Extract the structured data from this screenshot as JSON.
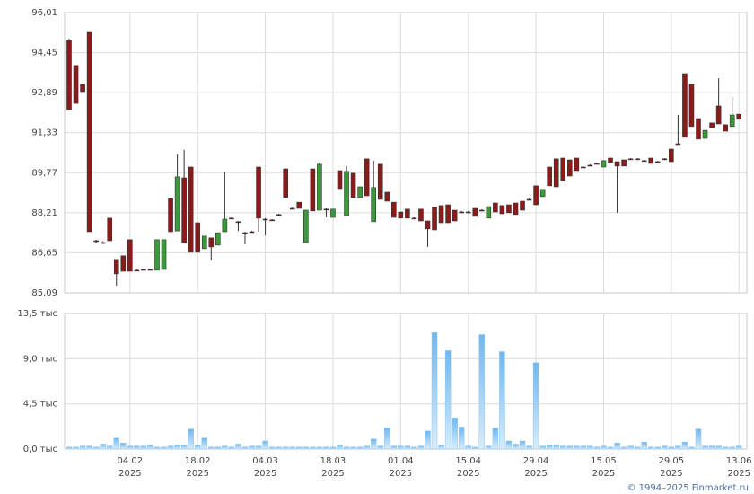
{
  "chart_data": {
    "type": "candlestick",
    "categories": [
      null,
      null,
      null,
      null,
      null,
      null,
      null,
      null,
      null,
      "04.02",
      null,
      null,
      null,
      null,
      null,
      null,
      null,
      null,
      null,
      "18.02",
      null,
      null,
      null,
      null,
      null,
      null,
      null,
      null,
      null,
      "04.03",
      null,
      null,
      null,
      null,
      null,
      null,
      null,
      null,
      null,
      "18.03",
      null,
      null,
      null,
      null,
      null,
      null,
      null,
      null,
      null,
      "01.04",
      null,
      null,
      null,
      null,
      null,
      null,
      null,
      null,
      null,
      "15.04",
      null,
      null,
      null,
      null,
      null,
      null,
      null,
      null,
      null,
      "29.04",
      null,
      null,
      null,
      null,
      null,
      null,
      null,
      null,
      null,
      "15.05",
      null,
      null,
      null,
      null,
      null,
      null,
      null,
      null,
      null,
      "29.05",
      null,
      null,
      null,
      null,
      null,
      null,
      null,
      null,
      null,
      "13.06"
    ],
    "year": "2025",
    "open": [
      94.93,
      93.95,
      93.21,
      95.24,
      87.12,
      87.05,
      88.0,
      86.39,
      86.53,
      87.16,
      85.97,
      86.0,
      86.0,
      85.97,
      86.0,
      88.77,
      87.5,
      89.57,
      89.99,
      87.82,
      86.81,
      87.23,
      86.95,
      87.47,
      88.0,
      87.86,
      87.43,
      87.47,
      89.99,
      87.96,
      87.93,
      88.14,
      89.92,
      88.38,
      88.62,
      87.05,
      89.92,
      88.31,
      88.35,
      88.03,
      89.85,
      88.1,
      89.75,
      88.8,
      90.31,
      87.86,
      90.1,
      89.01,
      88.62,
      88.24,
      88.35,
      88.0,
      88.35,
      87.89,
      88.42,
      88.49,
      88.52,
      88.31,
      88.24,
      88.24,
      88.38,
      88.31,
      88.0,
      88.59,
      88.49,
      88.52,
      88.59,
      88.66,
      88.73,
      89.26,
      88.84,
      89.99,
      90.31,
      90.34,
      90.27,
      90.34,
      89.99,
      90.06,
      90.13,
      89.99,
      90.34,
      90.2,
      90.27,
      90.31,
      90.31,
      90.24,
      90.34,
      90.2,
      90.31,
      90.69,
      90.9,
      93.63,
      93.21,
      91.88,
      91.11,
      91.71,
      92.37,
      91.64,
      91.57,
      92.05
    ],
    "high": [
      95.0,
      93.95,
      93.21,
      95.24,
      87.16,
      87.1,
      88.0,
      86.39,
      86.53,
      87.16,
      86.0,
      86.03,
      86.03,
      87.16,
      87.16,
      88.77,
      90.48,
      90.66,
      89.99,
      87.82,
      87.3,
      87.23,
      87.43,
      89.78,
      88.03,
      87.89,
      87.47,
      87.5,
      89.99,
      88.0,
      87.96,
      88.17,
      89.92,
      88.42,
      88.62,
      88.31,
      89.92,
      90.17,
      88.38,
      88.35,
      89.85,
      90.03,
      89.75,
      89.22,
      90.31,
      90.24,
      90.1,
      89.01,
      88.62,
      88.24,
      88.35,
      88.03,
      88.35,
      87.89,
      88.42,
      88.49,
      88.52,
      88.31,
      88.28,
      88.28,
      88.38,
      88.35,
      88.45,
      88.59,
      88.49,
      88.52,
      88.59,
      88.66,
      88.77,
      89.26,
      89.12,
      89.99,
      90.31,
      90.34,
      90.27,
      90.34,
      90.03,
      90.1,
      90.17,
      90.24,
      90.34,
      90.2,
      90.27,
      90.34,
      90.34,
      90.27,
      90.34,
      90.24,
      90.34,
      90.69,
      92.02,
      93.63,
      93.21,
      91.88,
      91.42,
      91.71,
      93.45,
      91.64,
      92.72,
      92.05
    ],
    "low": [
      92.23,
      92.47,
      92.93,
      87.47,
      87.05,
      87.0,
      87.12,
      85.37,
      85.93,
      85.93,
      85.93,
      85.97,
      85.97,
      85.97,
      86.0,
      87.47,
      87.5,
      87.05,
      86.67,
      86.67,
      86.81,
      86.35,
      86.95,
      87.47,
      87.96,
      87.5,
      86.98,
      87.43,
      87.47,
      87.33,
      87.89,
      88.1,
      88.8,
      88.35,
      88.38,
      87.05,
      88.28,
      88.31,
      88.03,
      88.03,
      89.15,
      88.1,
      88.8,
      88.8,
      88.87,
      87.86,
      88.73,
      88.66,
      88.03,
      88.0,
      88.0,
      87.96,
      87.89,
      86.88,
      87.54,
      87.82,
      87.82,
      87.89,
      88.21,
      88.21,
      88.07,
      88.28,
      88.0,
      88.24,
      88.17,
      88.21,
      88.14,
      88.31,
      88.7,
      88.52,
      88.84,
      89.26,
      89.22,
      89.47,
      89.64,
      89.85,
      89.96,
      90.03,
      90.1,
      89.99,
      90.17,
      88.21,
      90.03,
      90.27,
      90.27,
      90.2,
      90.13,
      90.17,
      90.27,
      90.2,
      90.87,
      91.15,
      91.57,
      91.08,
      91.11,
      91.53,
      91.67,
      91.39,
      91.57,
      91.85
    ],
    "close": [
      92.23,
      92.47,
      92.93,
      87.47,
      87.12,
      87.05,
      87.12,
      85.83,
      85.93,
      85.93,
      85.97,
      86.0,
      86.0,
      87.16,
      87.16,
      87.47,
      89.61,
      87.05,
      86.67,
      86.67,
      87.3,
      86.88,
      87.43,
      87.96,
      88.0,
      87.86,
      87.43,
      87.47,
      88.0,
      87.96,
      87.93,
      88.14,
      88.8,
      88.38,
      88.38,
      88.31,
      88.28,
      90.1,
      88.35,
      88.35,
      89.15,
      89.82,
      88.8,
      89.22,
      88.87,
      89.19,
      88.73,
      88.66,
      88.03,
      88.0,
      88.0,
      88.0,
      87.89,
      87.58,
      87.54,
      87.82,
      87.82,
      87.89,
      88.24,
      88.24,
      88.07,
      88.31,
      88.45,
      88.24,
      88.17,
      88.21,
      88.14,
      88.31,
      88.73,
      88.52,
      89.12,
      89.26,
      89.22,
      89.47,
      89.64,
      89.85,
      89.99,
      90.06,
      90.13,
      90.24,
      90.17,
      90.03,
      90.03,
      90.31,
      90.31,
      90.24,
      90.13,
      90.2,
      90.31,
      90.2,
      90.9,
      91.15,
      91.57,
      91.08,
      91.42,
      91.53,
      91.67,
      91.39,
      92.02,
      91.85
    ],
    "volume": [
      0.2,
      0.2,
      0.3,
      0.3,
      0.2,
      0.5,
      0.3,
      1.1,
      0.6,
      0.3,
      0.3,
      0.3,
      0.4,
      0.2,
      0.2,
      0.3,
      0.4,
      0.4,
      2.0,
      0.4,
      1.1,
      0.2,
      0.2,
      0.3,
      0.2,
      0.5,
      0.2,
      0.3,
      0.3,
      0.8,
      0.2,
      0.2,
      0.2,
      0.2,
      0.2,
      0.2,
      0.2,
      0.2,
      0.2,
      0.2,
      0.4,
      0.2,
      0.2,
      0.2,
      0.3,
      1.0,
      0.3,
      2.1,
      0.3,
      0.3,
      0.3,
      0.2,
      0.3,
      1.8,
      11.6,
      0.4,
      9.8,
      3.1,
      2.2,
      0.3,
      0.2,
      11.4,
      0.3,
      2.1,
      9.7,
      0.8,
      0.5,
      0.8,
      0.3,
      8.6,
      0.3,
      0.4,
      0.4,
      0.3,
      0.3,
      0.3,
      0.3,
      0.3,
      0.2,
      0.3,
      0.2,
      0.6,
      0.2,
      0.3,
      0.2,
      0.7,
      0.2,
      0.2,
      0.3,
      0.2,
      0.3,
      0.7,
      0.2,
      2.0,
      0.3,
      0.3,
      0.3,
      0.2,
      0.2,
      0.3
    ],
    "up_color": "#3a9a3a",
    "down_color": "#8b1a1a",
    "volume_color": "#8ec8f2",
    "ylim": [
      85.09,
      96.01
    ],
    "yticks": [
      {
        "value": 85.09,
        "label": "85,09"
      },
      {
        "value": 86.65,
        "label": "86,65"
      },
      {
        "value": 88.21,
        "label": "88,21"
      },
      {
        "value": 89.77,
        "label": "89,77"
      },
      {
        "value": 91.33,
        "label": "91,33"
      },
      {
        "value": 92.89,
        "label": "92,89"
      },
      {
        "value": 94.45,
        "label": "94,45"
      },
      {
        "value": 96.01,
        "label": "96,01"
      }
    ],
    "vlim": [
      0,
      13.5
    ],
    "vticks": [
      {
        "value": 0,
        "label": "0,0 тыс"
      },
      {
        "value": 4.5,
        "label": "4,5 тыс"
      },
      {
        "value": 9,
        "label": "9,0 тыс"
      },
      {
        "value": 13.5,
        "label": "13,5 тыс"
      }
    ],
    "grid": true,
    "copyright": "© 1994–2025 Finmarket.ru"
  }
}
